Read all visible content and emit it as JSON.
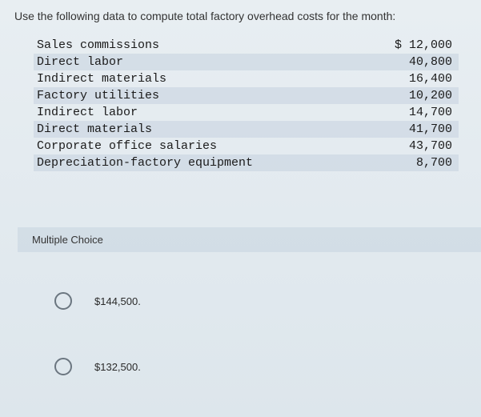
{
  "question": "Use the following data to compute total factory overhead costs for the month:",
  "table": {
    "rows": [
      {
        "label": "Sales commissions",
        "value": "$ 12,000",
        "shaded": false
      },
      {
        "label": "Direct labor",
        "value": "40,800",
        "shaded": true
      },
      {
        "label": "Indirect materials",
        "value": "16,400",
        "shaded": false
      },
      {
        "label": "Factory utilities",
        "value": "10,200",
        "shaded": true
      },
      {
        "label": "Indirect labor",
        "value": "14,700",
        "shaded": false
      },
      {
        "label": "Direct materials",
        "value": "41,700",
        "shaded": true
      },
      {
        "label": "Corporate office salaries",
        "value": "43,700",
        "shaded": false
      },
      {
        "label": "Depreciation-factory equipment",
        "value": "8,700",
        "shaded": true
      }
    ]
  },
  "mc": {
    "header": "Multiple Choice",
    "options": [
      {
        "label": "$144,500."
      },
      {
        "label": "$132,500."
      }
    ]
  }
}
